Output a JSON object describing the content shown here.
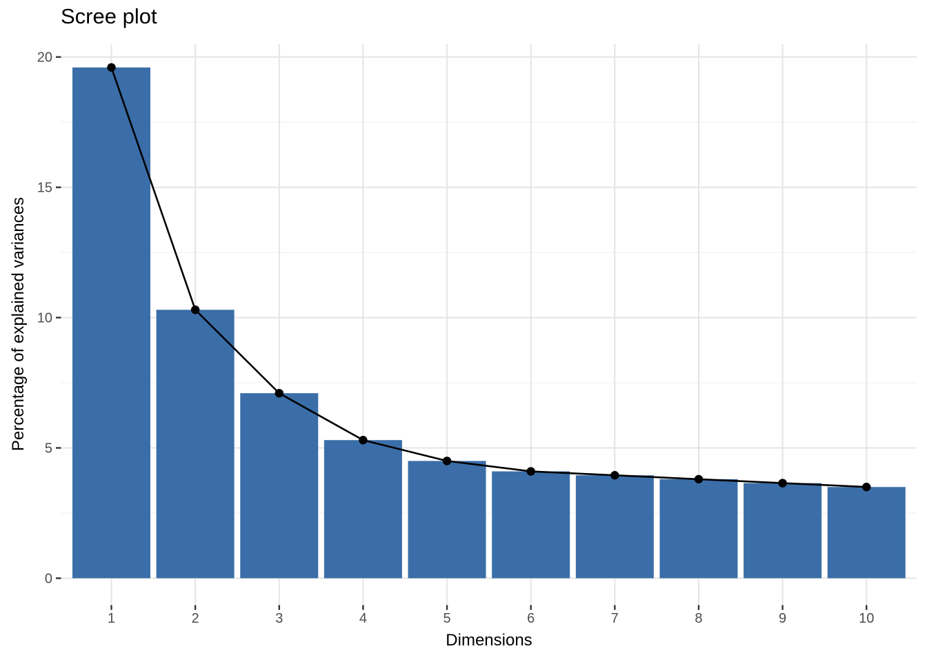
{
  "chart_data": {
    "type": "bar",
    "overlay": "line-with-points",
    "title": "Scree plot",
    "xlabel": "Dimensions",
    "ylabel": "Percentage of explained variances",
    "categories": [
      "1",
      "2",
      "3",
      "4",
      "5",
      "6",
      "7",
      "8",
      "9",
      "10"
    ],
    "values": [
      19.6,
      10.3,
      7.1,
      5.3,
      4.5,
      4.1,
      3.95,
      3.8,
      3.65,
      3.5
    ],
    "ylim": [
      0,
      20.5
    ],
    "yticks": [
      0,
      5,
      10,
      15,
      20
    ],
    "yticks_minor": [
      2.5,
      7.5,
      12.5,
      17.5
    ],
    "grid": "on",
    "legend": "none",
    "colors": {
      "bar_fill": "#3B6EA8",
      "line": "#000000",
      "point": "#000000",
      "grid_major": "#E4E4E4",
      "grid_minor": "#F0F0F0",
      "axis_tick": "#333333",
      "tick_label": "#4D4D4D",
      "title_text": "#000000",
      "background": "#FFFFFF"
    }
  }
}
